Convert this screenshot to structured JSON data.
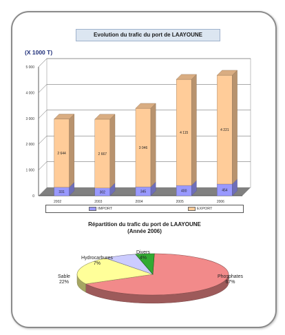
{
  "chart_data": [
    {
      "type": "bar",
      "stacked": true,
      "title": "Evolution du trafic du port de LAAYOUNE",
      "unit_label": "(X 1000 T)",
      "categories": [
        "2002",
        "2003",
        "2004",
        "2005",
        "2006"
      ],
      "series": [
        {
          "name": "IMPORT",
          "values": [
            331,
            302,
            345,
            400,
            454
          ],
          "labels": [
            "331",
            "302",
            "345",
            "400",
            "454"
          ],
          "color": "#9999ff"
        },
        {
          "name": "EXPORT",
          "values": [
            2644,
            2667,
            3046,
            4115,
            4221
          ],
          "labels": [
            "2 644",
            "2 667",
            "3 046",
            "4 115",
            "4 221"
          ],
          "color": "#ffcc99"
        }
      ],
      "yticks": [
        "0",
        "1 000",
        "2 000",
        "3 000",
        "4 000",
        "5 000"
      ],
      "ylim": [
        0,
        5000
      ],
      "grid": true,
      "legend_position": "bottom"
    },
    {
      "type": "pie",
      "title_lines": [
        "Répartition du trafic du port de LAAYOUNE",
        "(Année 2006)"
      ],
      "slices": [
        {
          "name": "Phosphates",
          "value": 67,
          "label": "67%",
          "color": "#f28a8a"
        },
        {
          "name": "Sable",
          "value": 22,
          "label": "22%",
          "color": "#ffff99"
        },
        {
          "name": "Hydrocarbures",
          "value": 7,
          "label": "7%",
          "color": "#ccccff"
        },
        {
          "name": "Divers",
          "value": 4,
          "label": "4%",
          "color": "#33aa33"
        }
      ]
    }
  ]
}
